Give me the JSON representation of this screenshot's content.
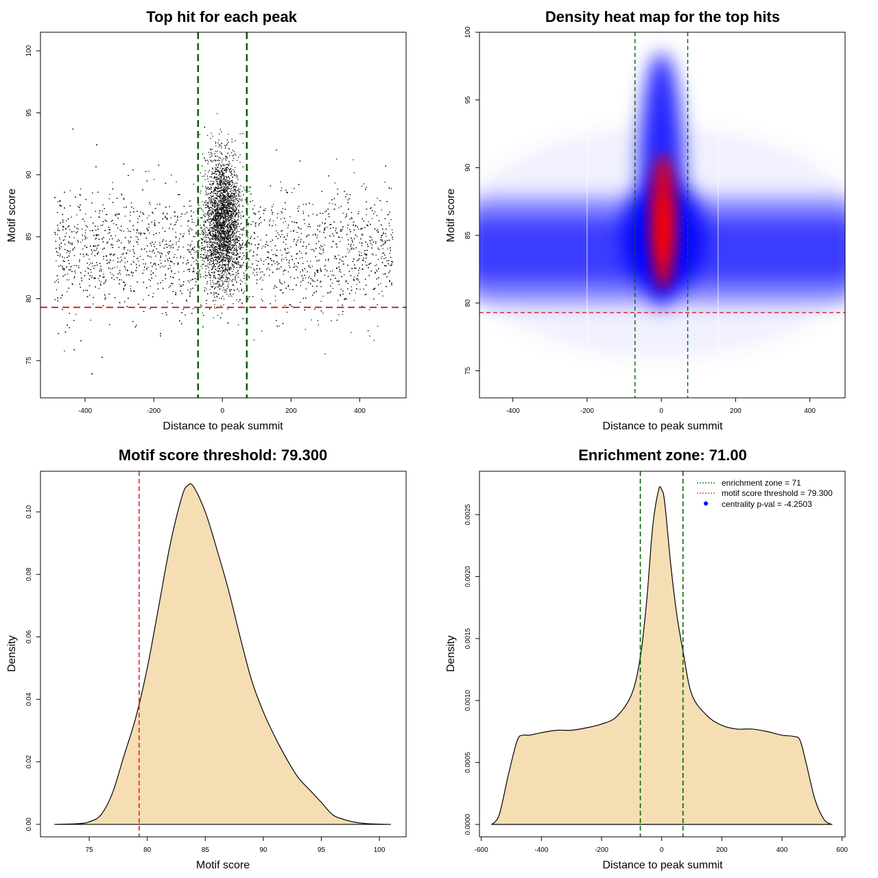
{
  "chart_data": [
    {
      "type": "scatter",
      "title": "Top hit for each peak",
      "xlabel": "Distance to peak summit",
      "ylabel": "Motif score",
      "xlim": [
        -530,
        535
      ],
      "ylim": [
        72,
        101.5
      ],
      "xticks": [
        -400,
        -200,
        0,
        200,
        400
      ],
      "yticks": [
        75,
        80,
        85,
        90,
        95,
        100
      ],
      "vlines": [
        -71,
        71
      ],
      "hline": 79.3,
      "colors": {
        "points": "#000000",
        "vlines": "#006400",
        "hline": "#d62728"
      },
      "grid": false,
      "points_description_x_range": [
        -490,
        495
      ],
      "points_core_y_range": [
        80,
        90
      ],
      "points_center_max_y": 98
    },
    {
      "type": "heatmap",
      "title": "Density heat map for the top hits",
      "xlabel": "Distance to peak summit",
      "ylabel": "Motif score",
      "xlim": [
        -490,
        495
      ],
      "ylim": [
        73,
        100
      ],
      "xticks": [
        -400,
        -200,
        0,
        200,
        400
      ],
      "yticks": [
        75,
        80,
        85,
        90,
        95,
        100
      ],
      "vlines": [
        -71,
        71
      ],
      "hline": 79.3,
      "colors": {
        "low": "#ffffff",
        "mid": "#0000ff",
        "high": "#ff0000",
        "vlines": "#006400",
        "hline": "#d62728"
      },
      "peak_center": [
        0,
        86
      ],
      "band_center_y": 83.5
    },
    {
      "type": "area",
      "title": "Motif score threshold: 79.300",
      "xlabel": "Motif score",
      "ylabel": "Density",
      "xlim": [
        70.8,
        102.3
      ],
      "ylim": [
        -0.004,
        0.113
      ],
      "xticks": [
        75,
        80,
        85,
        90,
        95,
        100
      ],
      "yticks": [
        0.0,
        0.02,
        0.04,
        0.06,
        0.08,
        0.1
      ],
      "vline": 79.3,
      "colors": {
        "fill": "#f5deb3",
        "line": "#000000",
        "vline": "#d62728"
      },
      "x": [
        72,
        74,
        75,
        76,
        77,
        78,
        79,
        80,
        81,
        82,
        83,
        83.5,
        84,
        85,
        86,
        87,
        88,
        89,
        90,
        91,
        92,
        93,
        94,
        95,
        96,
        97,
        98,
        99,
        100,
        101
      ],
      "y": [
        0.0,
        0.0002,
        0.0008,
        0.003,
        0.01,
        0.022,
        0.034,
        0.05,
        0.07,
        0.09,
        0.105,
        0.1085,
        0.108,
        0.1,
        0.088,
        0.075,
        0.06,
        0.046,
        0.036,
        0.028,
        0.021,
        0.015,
        0.011,
        0.007,
        0.003,
        0.0015,
        0.0006,
        0.0002,
        5e-05,
        0.0
      ]
    },
    {
      "type": "area",
      "title": "Enrichment zone: 71.00",
      "xlabel": "Distance to peak summit",
      "ylabel": "Density",
      "xlim": [
        -606,
        610
      ],
      "ylim": [
        -0.0001,
        0.00285
      ],
      "xticks": [
        -600,
        -400,
        -200,
        0,
        200,
        400,
        600
      ],
      "yticks": [
        0.0,
        0.0005,
        0.001,
        0.0015,
        0.002,
        0.0025
      ],
      "yticklabels": [
        "0.0000",
        "0.0005",
        "0.0010",
        "0.0015",
        "0.0020",
        "0.0025"
      ],
      "vlines": [
        -71,
        71
      ],
      "colors": {
        "fill": "#f5deb3",
        "line": "#000000",
        "vlines": "#006400"
      },
      "x": [
        -565,
        -540,
        -510,
        -480,
        -460,
        -440,
        -400,
        -350,
        -300,
        -250,
        -200,
        -150,
        -100,
        -71,
        -50,
        -30,
        -10,
        0,
        10,
        30,
        50,
        71,
        100,
        150,
        200,
        250,
        300,
        350,
        400,
        440,
        460,
        480,
        510,
        540,
        565
      ],
      "y": [
        0.0,
        8e-05,
        0.0004,
        0.00068,
        0.00072,
        0.00072,
        0.00074,
        0.00076,
        0.00076,
        0.00078,
        0.00081,
        0.00087,
        0.00105,
        0.00135,
        0.0018,
        0.0024,
        0.0027,
        0.0027,
        0.0026,
        0.0021,
        0.0017,
        0.0014,
        0.00105,
        0.00088,
        0.0008,
        0.00077,
        0.00077,
        0.00075,
        0.00072,
        0.00071,
        0.00068,
        0.0005,
        0.0002,
        4e-05,
        0.0
      ],
      "legend": {
        "placement": "top-right",
        "entries": [
          {
            "label": "enrichment zone = 71",
            "style": "dotted",
            "color": "#006400"
          },
          {
            "label": "motif score threshold = 79.300",
            "style": "dotted",
            "color": "#d62728"
          },
          {
            "label": "centrality p-val = -4.2503",
            "style": "point",
            "color": "#0000ff"
          }
        ]
      }
    }
  ]
}
